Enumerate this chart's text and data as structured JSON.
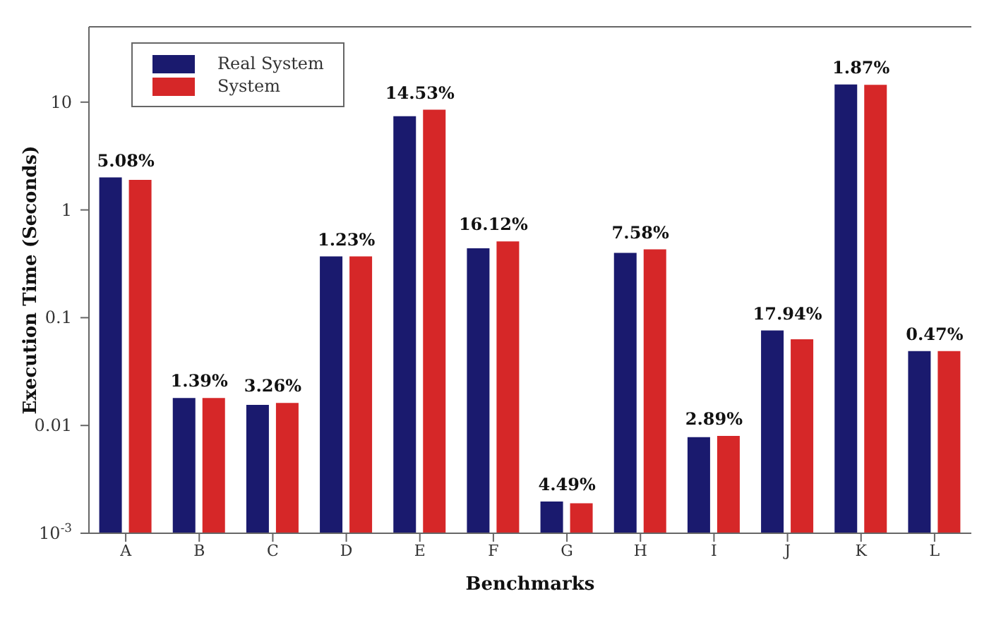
{
  "chart_data": {
    "type": "bar",
    "xlabel": "Benchmarks",
    "ylabel": "Execution Time (Seconds)",
    "categories": [
      "A",
      "B",
      "C",
      "D",
      "E",
      "F",
      "G",
      "H",
      "I",
      "J",
      "K",
      "L"
    ],
    "series": [
      {
        "name": "Real System",
        "color": "#1a1a6e",
        "values": [
          2.0,
          0.018,
          0.0155,
          0.37,
          7.4,
          0.44,
          0.00197,
          0.4,
          0.0078,
          0.076,
          14.6,
          0.049
        ]
      },
      {
        "name": "System",
        "color": "#d62728",
        "values": [
          1.9,
          0.018,
          0.0162,
          0.37,
          8.5,
          0.51,
          0.0019,
          0.43,
          0.008,
          0.063,
          14.5,
          0.049
        ]
      }
    ],
    "log": true,
    "ylim": [
      0.001,
      50
    ],
    "yticks": [
      {
        "value": 0.001,
        "label": "10$^{-3}$"
      },
      0.01,
      0.1,
      1,
      10
    ],
    "annotations": [
      {
        "text": "5.08%",
        "x": "A",
        "y": 2.0
      },
      {
        "text": "1.39%",
        "x": "B",
        "y": 0.018
      },
      {
        "text": "3.26%",
        "x": "C",
        "y": 0.0162
      },
      {
        "text": "1.23%",
        "x": "D",
        "y": 0.37
      },
      {
        "text": "14.53%",
        "x": "E",
        "y": 8.5
      },
      {
        "text": "16.12%",
        "x": "F",
        "y": 0.51
      },
      {
        "text": "4.49%",
        "x": "G",
        "y": 0.00197
      },
      {
        "text": "7.58%",
        "x": "H",
        "y": 0.43
      },
      {
        "text": "2.89%",
        "x": "I",
        "y": 0.008
      },
      {
        "text": "17.94%",
        "x": "J",
        "y": 0.076
      },
      {
        "text": "1.87%",
        "x": "K",
        "y": 14.6
      },
      {
        "text": "0.47%",
        "x": "L",
        "y": 0.049
      }
    ],
    "grid": false,
    "legend": "top left"
  }
}
